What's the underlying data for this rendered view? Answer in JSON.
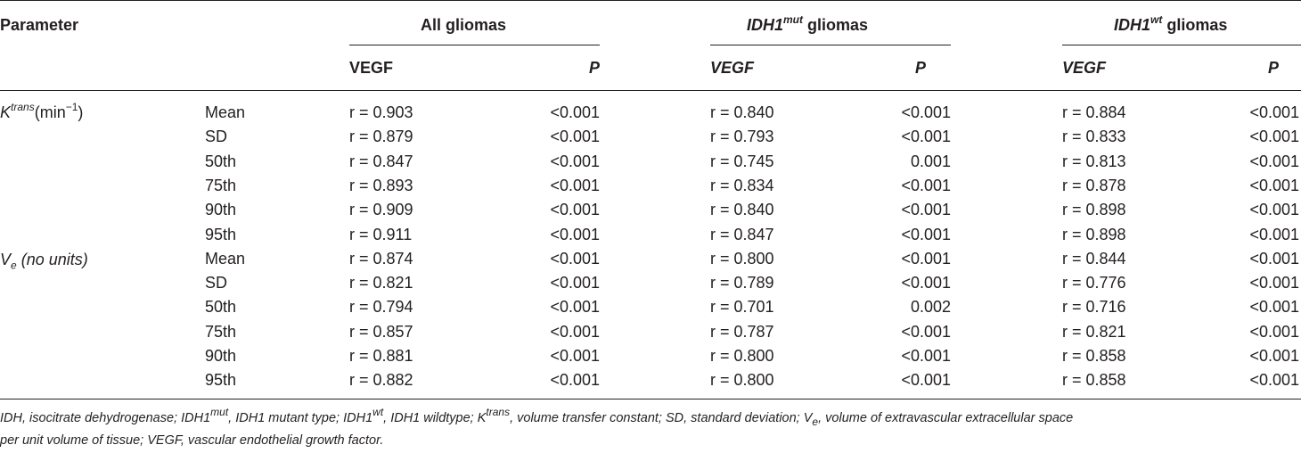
{
  "table": {
    "param_header": "Parameter",
    "groups": [
      {
        "label": "All gliomas",
        "gene": "",
        "sup": ""
      },
      {
        "label": " gliomas",
        "gene": "IDH1",
        "sup": "mut"
      },
      {
        "label": " gliomas",
        "gene": "IDH1",
        "sup": "wt"
      }
    ],
    "subheaders": {
      "vegf": "VEGF",
      "p": "P"
    },
    "params": [
      {
        "base": "K",
        "sup": "trans",
        "tail": "(min",
        "tail_sup": "−1",
        "tail_end": ")"
      },
      {
        "base": "V",
        "sub": "e",
        "tail": " (no units)"
      }
    ],
    "rows": [
      {
        "stat": "Mean",
        "all_r": "r = 0.903",
        "all_p": "<0.001",
        "mut_r": "r = 0.840",
        "mut_p": "<0.001",
        "wt_r": "r = 0.884",
        "wt_p": "<0.001"
      },
      {
        "stat": "SD",
        "all_r": "r = 0.879",
        "all_p": "<0.001",
        "mut_r": "r = 0.793",
        "mut_p": "<0.001",
        "wt_r": "r = 0.833",
        "wt_p": "<0.001"
      },
      {
        "stat": "50th",
        "all_r": "r = 0.847",
        "all_p": "<0.001",
        "mut_r": "r = 0.745",
        "mut_p": "0.001",
        "wt_r": "r = 0.813",
        "wt_p": "<0.001"
      },
      {
        "stat": "75th",
        "all_r": "r = 0.893",
        "all_p": "<0.001",
        "mut_r": "r = 0.834",
        "mut_p": "<0.001",
        "wt_r": "r = 0.878",
        "wt_p": "<0.001"
      },
      {
        "stat": "90th",
        "all_r": "r = 0.909",
        "all_p": "<0.001",
        "mut_r": "r = 0.840",
        "mut_p": "<0.001",
        "wt_r": "r = 0.898",
        "wt_p": "<0.001"
      },
      {
        "stat": "95th",
        "all_r": "r = 0.911",
        "all_p": "<0.001",
        "mut_r": "r = 0.847",
        "mut_p": "<0.001",
        "wt_r": "r = 0.898",
        "wt_p": "<0.001"
      },
      {
        "stat": "Mean",
        "all_r": "r = 0.874",
        "all_p": "<0.001",
        "mut_r": "r = 0.800",
        "mut_p": "<0.001",
        "wt_r": "r = 0.844",
        "wt_p": "<0.001"
      },
      {
        "stat": "SD",
        "all_r": "r = 0.821",
        "all_p": "<0.001",
        "mut_r": "r = 0.789",
        "mut_p": "<0.001",
        "wt_r": "r = 0.776",
        "wt_p": "<0.001"
      },
      {
        "stat": "50th",
        "all_r": "r = 0.794",
        "all_p": "<0.001",
        "mut_r": "r = 0.701",
        "mut_p": "0.002",
        "wt_r": "r = 0.716",
        "wt_p": "<0.001"
      },
      {
        "stat": "75th",
        "all_r": "r = 0.857",
        "all_p": "<0.001",
        "mut_r": "r = 0.787",
        "mut_p": "<0.001",
        "wt_r": "r = 0.821",
        "wt_p": "<0.001"
      },
      {
        "stat": "90th",
        "all_r": "r = 0.881",
        "all_p": "<0.001",
        "mut_r": "r = 0.800",
        "mut_p": "<0.001",
        "wt_r": "r = 0.858",
        "wt_p": "<0.001"
      },
      {
        "stat": "95th",
        "all_r": "r = 0.882",
        "all_p": "<0.001",
        "mut_r": "r = 0.800",
        "mut_p": "<0.001",
        "wt_r": "r = 0.858",
        "wt_p": "<0.001"
      }
    ]
  },
  "footnote": {
    "p1": "IDH, isocitrate dehydrogenase; IDH1",
    "p1_sup": "mut",
    "p2": ", IDH1 mutant type; IDH1",
    "p2_sup": "wt",
    "p3": ", IDH1 wildtype; K",
    "p3_sup": "trans",
    "p4": ", volume transfer constant; SD, standard deviation; V",
    "p4_sub": "e",
    "p5": ", volume of extravascular extracellular space",
    "line2": "per unit volume of tissue; VEGF, vascular endothelial growth factor."
  }
}
